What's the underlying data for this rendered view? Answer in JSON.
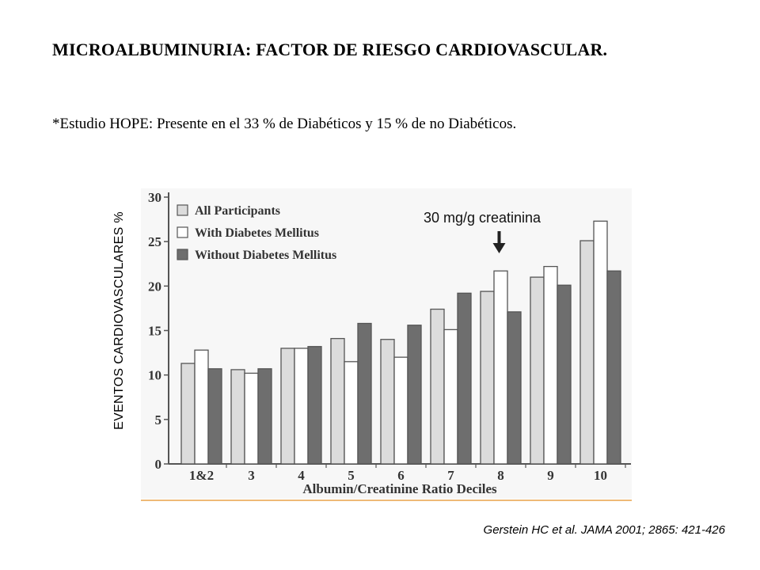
{
  "slide": {
    "title": "MICROALBUMINURIA: FACTOR DE RIESGO CARDIOVASCULAR.",
    "subtitle": "*Estudio HOPE: Presente en el 33 % de Diabéticos  y 15 % de no Diabéticos.",
    "citation": "Gerstein HC et al. JAMA 2001; 2865: 421-426"
  },
  "chart_data": {
    "type": "bar",
    "title": "",
    "xlabel": "Albumin/Creatinine Ratio Deciles",
    "ylabel": "EVENTOS CARDIOVASCULARES  %",
    "ylim": [
      0,
      30
    ],
    "yticks": [
      0,
      5,
      10,
      15,
      20,
      25,
      30
    ],
    "grid": false,
    "legend_position": "top-left",
    "categories": [
      "1&2",
      "3",
      "4",
      "5",
      "6",
      "7",
      "8",
      "9",
      "10"
    ],
    "series": [
      {
        "name": "All Participants",
        "color": "#dcdcdc",
        "values": [
          11.3,
          10.6,
          13.0,
          14.1,
          14.0,
          17.4,
          19.4,
          21.0,
          25.1
        ]
      },
      {
        "name": "With Diabetes Mellitus",
        "color": "#ffffff",
        "values": [
          12.8,
          10.2,
          13.0,
          11.5,
          12.0,
          15.1,
          21.7,
          22.2,
          27.3
        ]
      },
      {
        "name": "Without Diabetes Mellitus",
        "color": "#6e6e6e",
        "values": [
          10.7,
          10.7,
          13.2,
          15.8,
          15.6,
          19.2,
          17.1,
          20.1,
          21.7
        ]
      }
    ],
    "annotation": {
      "text": "30 mg/g creatinina",
      "category": "8"
    }
  }
}
